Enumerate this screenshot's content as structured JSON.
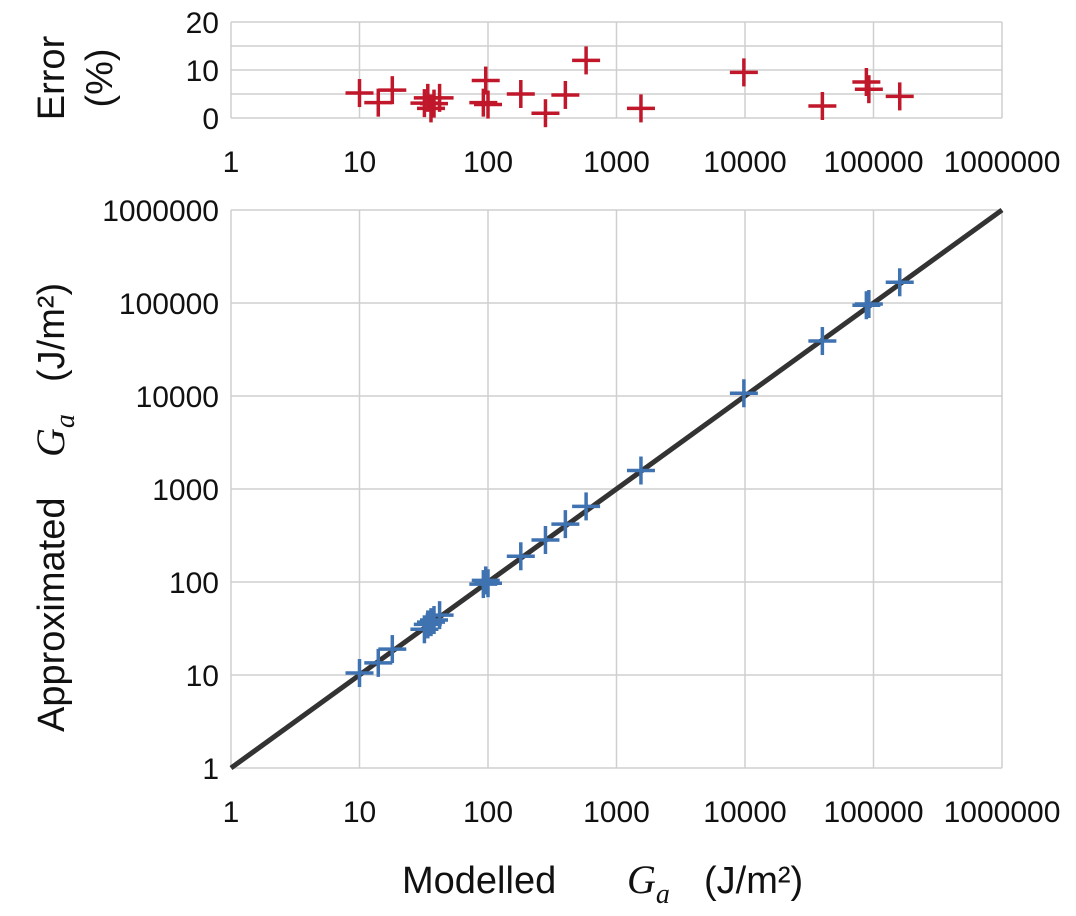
{
  "chart_data": [
    {
      "id": "error",
      "type": "scatter",
      "x_scale": "log",
      "xlim": [
        1,
        1000000
      ],
      "ylim": [
        0,
        20
      ],
      "x_ticks": [
        1,
        10,
        100,
        1000,
        10000,
        100000,
        1000000
      ],
      "x_tick_labels": [
        "1",
        "10",
        "100",
        "1000",
        "10000",
        "100000",
        "1000000"
      ],
      "y_ticks": [
        0,
        10,
        20
      ],
      "y_tick_labels": [
        "0",
        "10",
        "20"
      ],
      "ylabel_line1": "Error",
      "ylabel_line2": "(%)",
      "marker": "plus",
      "color": "#c0172b",
      "series": [
        {
          "name": "Error",
          "x": [
            10,
            14,
            18,
            32,
            34,
            36,
            38,
            42,
            92,
            96,
            100,
            180,
            280,
            400,
            580,
            1550,
            9800,
            40000,
            88000,
            92000,
            160000
          ],
          "y": [
            5.2,
            3.2,
            5.8,
            3.1,
            4.2,
            2.0,
            3.0,
            4.2,
            3.2,
            7.8,
            2.8,
            5.0,
            1.0,
            4.8,
            12.0,
            2.0,
            9.5,
            2.5,
            7.5,
            6.0,
            4.5
          ]
        }
      ]
    },
    {
      "id": "parity",
      "type": "scatter",
      "x_scale": "log",
      "y_scale": "log",
      "xlim": [
        1,
        1000000
      ],
      "ylim": [
        1,
        1000000
      ],
      "x_ticks": [
        1,
        10,
        100,
        1000,
        10000,
        100000,
        1000000
      ],
      "x_tick_labels": [
        "1",
        "10",
        "100",
        "1000",
        "10000",
        "100000",
        "1000000"
      ],
      "y_ticks": [
        1,
        10,
        100,
        1000,
        10000,
        100000,
        1000000
      ],
      "y_tick_labels": [
        "1",
        "10",
        "100",
        "1000",
        "10000",
        "100000",
        "1000000"
      ],
      "xlabel_prefix": "Modelled",
      "ylabel_prefix": "Approximated",
      "label_var": "G",
      "label_sub": "a",
      "label_units": "(J/m²)",
      "line_color": "#333333",
      "marker": "plus",
      "color": "#3f72b0",
      "reference_line": {
        "x": [
          1,
          1000000
        ],
        "y": [
          1,
          1000000
        ]
      },
      "series": [
        {
          "name": "Approximated Ga",
          "x": [
            10,
            14,
            18,
            32,
            34,
            36,
            38,
            42,
            92,
            96,
            100,
            180,
            280,
            400,
            580,
            1550,
            9800,
            40000,
            88000,
            92000,
            160000
          ],
          "y": [
            10.5,
            13.5,
            19,
            31,
            35,
            37,
            39,
            44,
            95,
            104,
            97,
            189,
            283,
            419,
            650,
            1580,
            10700,
            39000,
            94600,
            97500,
            167000
          ]
        }
      ]
    }
  ]
}
